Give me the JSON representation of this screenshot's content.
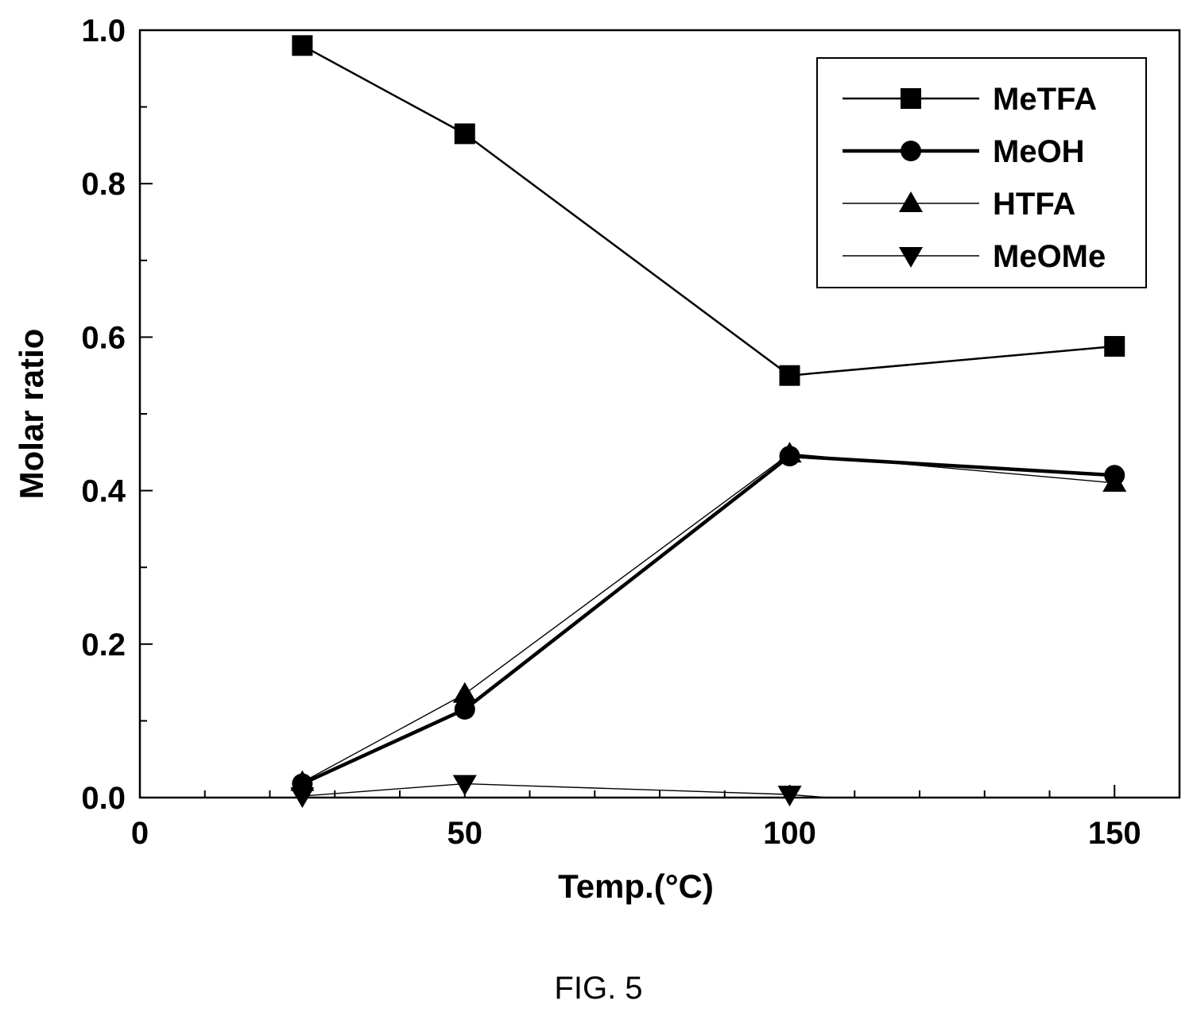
{
  "figure": {
    "caption": "FIG. 5"
  },
  "chart_data": {
    "type": "line",
    "xlabel": "Temp.(°C)",
    "ylabel": "Molar ratio",
    "xlim": [
      0,
      160
    ],
    "ylim": [
      0,
      1.0
    ],
    "xticks": [
      0,
      50,
      100,
      150
    ],
    "xtick_labels": [
      "0",
      "50",
      "100",
      "150"
    ],
    "x_minor_step": 10,
    "yticks": [
      0,
      0.2,
      0.4,
      0.6,
      0.8,
      1.0
    ],
    "ytick_labels": [
      "0.0",
      "0.2",
      "0.4",
      "0.6",
      "0.8",
      "1.0"
    ],
    "y_minor_step": 0.1,
    "grid": false,
    "legend_position": "top-right",
    "series": [
      {
        "name": "MeTFA",
        "marker": "square",
        "line": "normal",
        "x": [
          25,
          50,
          100,
          150
        ],
        "values": [
          0.98,
          0.865,
          0.55,
          0.588
        ]
      },
      {
        "name": "MeOH",
        "marker": "circle",
        "line": "thick",
        "x": [
          25,
          50,
          100,
          150
        ],
        "values": [
          0.018,
          0.115,
          0.445,
          0.42
        ]
      },
      {
        "name": "HTFA",
        "marker": "triangle-up",
        "line": "thin",
        "x": [
          25,
          50,
          100,
          150
        ],
        "values": [
          0.02,
          0.135,
          0.448,
          0.41
        ]
      },
      {
        "name": "MeOMe",
        "marker": "triangle-down",
        "line": "thin",
        "x": [
          25,
          50,
          100,
          150
        ],
        "values": [
          0.002,
          0.018,
          0.004,
          -0.03
        ]
      }
    ]
  }
}
